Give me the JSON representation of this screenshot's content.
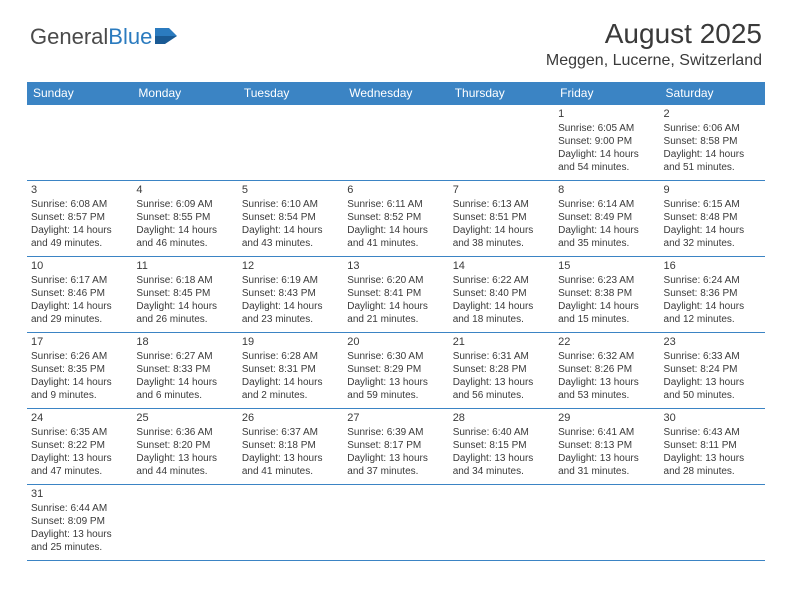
{
  "logo": {
    "part1": "General",
    "part2": "Blue"
  },
  "title": "August 2025",
  "location": "Meggen, Lucerne, Switzerland",
  "colors": {
    "header_bg": "#3b84c4",
    "header_text": "#ffffff",
    "body_text": "#3a3a3a",
    "border": "#3b84c4",
    "background": "#ffffff",
    "logo_blue": "#2b7bbf"
  },
  "weekdays": [
    "Sunday",
    "Monday",
    "Tuesday",
    "Wednesday",
    "Thursday",
    "Friday",
    "Saturday"
  ],
  "cells": [
    [
      {
        "day": "",
        "lines": []
      },
      {
        "day": "",
        "lines": []
      },
      {
        "day": "",
        "lines": []
      },
      {
        "day": "",
        "lines": []
      },
      {
        "day": "",
        "lines": []
      },
      {
        "day": "1",
        "lines": [
          "Sunrise: 6:05 AM",
          "Sunset: 9:00 PM",
          "Daylight: 14 hours",
          "and 54 minutes."
        ]
      },
      {
        "day": "2",
        "lines": [
          "Sunrise: 6:06 AM",
          "Sunset: 8:58 PM",
          "Daylight: 14 hours",
          "and 51 minutes."
        ]
      }
    ],
    [
      {
        "day": "3",
        "lines": [
          "Sunrise: 6:08 AM",
          "Sunset: 8:57 PM",
          "Daylight: 14 hours",
          "and 49 minutes."
        ]
      },
      {
        "day": "4",
        "lines": [
          "Sunrise: 6:09 AM",
          "Sunset: 8:55 PM",
          "Daylight: 14 hours",
          "and 46 minutes."
        ]
      },
      {
        "day": "5",
        "lines": [
          "Sunrise: 6:10 AM",
          "Sunset: 8:54 PM",
          "Daylight: 14 hours",
          "and 43 minutes."
        ]
      },
      {
        "day": "6",
        "lines": [
          "Sunrise: 6:11 AM",
          "Sunset: 8:52 PM",
          "Daylight: 14 hours",
          "and 41 minutes."
        ]
      },
      {
        "day": "7",
        "lines": [
          "Sunrise: 6:13 AM",
          "Sunset: 8:51 PM",
          "Daylight: 14 hours",
          "and 38 minutes."
        ]
      },
      {
        "day": "8",
        "lines": [
          "Sunrise: 6:14 AM",
          "Sunset: 8:49 PM",
          "Daylight: 14 hours",
          "and 35 minutes."
        ]
      },
      {
        "day": "9",
        "lines": [
          "Sunrise: 6:15 AM",
          "Sunset: 8:48 PM",
          "Daylight: 14 hours",
          "and 32 minutes."
        ]
      }
    ],
    [
      {
        "day": "10",
        "lines": [
          "Sunrise: 6:17 AM",
          "Sunset: 8:46 PM",
          "Daylight: 14 hours",
          "and 29 minutes."
        ]
      },
      {
        "day": "11",
        "lines": [
          "Sunrise: 6:18 AM",
          "Sunset: 8:45 PM",
          "Daylight: 14 hours",
          "and 26 minutes."
        ]
      },
      {
        "day": "12",
        "lines": [
          "Sunrise: 6:19 AM",
          "Sunset: 8:43 PM",
          "Daylight: 14 hours",
          "and 23 minutes."
        ]
      },
      {
        "day": "13",
        "lines": [
          "Sunrise: 6:20 AM",
          "Sunset: 8:41 PM",
          "Daylight: 14 hours",
          "and 21 minutes."
        ]
      },
      {
        "day": "14",
        "lines": [
          "Sunrise: 6:22 AM",
          "Sunset: 8:40 PM",
          "Daylight: 14 hours",
          "and 18 minutes."
        ]
      },
      {
        "day": "15",
        "lines": [
          "Sunrise: 6:23 AM",
          "Sunset: 8:38 PM",
          "Daylight: 14 hours",
          "and 15 minutes."
        ]
      },
      {
        "day": "16",
        "lines": [
          "Sunrise: 6:24 AM",
          "Sunset: 8:36 PM",
          "Daylight: 14 hours",
          "and 12 minutes."
        ]
      }
    ],
    [
      {
        "day": "17",
        "lines": [
          "Sunrise: 6:26 AM",
          "Sunset: 8:35 PM",
          "Daylight: 14 hours",
          "and 9 minutes."
        ]
      },
      {
        "day": "18",
        "lines": [
          "Sunrise: 6:27 AM",
          "Sunset: 8:33 PM",
          "Daylight: 14 hours",
          "and 6 minutes."
        ]
      },
      {
        "day": "19",
        "lines": [
          "Sunrise: 6:28 AM",
          "Sunset: 8:31 PM",
          "Daylight: 14 hours",
          "and 2 minutes."
        ]
      },
      {
        "day": "20",
        "lines": [
          "Sunrise: 6:30 AM",
          "Sunset: 8:29 PM",
          "Daylight: 13 hours",
          "and 59 minutes."
        ]
      },
      {
        "day": "21",
        "lines": [
          "Sunrise: 6:31 AM",
          "Sunset: 8:28 PM",
          "Daylight: 13 hours",
          "and 56 minutes."
        ]
      },
      {
        "day": "22",
        "lines": [
          "Sunrise: 6:32 AM",
          "Sunset: 8:26 PM",
          "Daylight: 13 hours",
          "and 53 minutes."
        ]
      },
      {
        "day": "23",
        "lines": [
          "Sunrise: 6:33 AM",
          "Sunset: 8:24 PM",
          "Daylight: 13 hours",
          "and 50 minutes."
        ]
      }
    ],
    [
      {
        "day": "24",
        "lines": [
          "Sunrise: 6:35 AM",
          "Sunset: 8:22 PM",
          "Daylight: 13 hours",
          "and 47 minutes."
        ]
      },
      {
        "day": "25",
        "lines": [
          "Sunrise: 6:36 AM",
          "Sunset: 8:20 PM",
          "Daylight: 13 hours",
          "and 44 minutes."
        ]
      },
      {
        "day": "26",
        "lines": [
          "Sunrise: 6:37 AM",
          "Sunset: 8:18 PM",
          "Daylight: 13 hours",
          "and 41 minutes."
        ]
      },
      {
        "day": "27",
        "lines": [
          "Sunrise: 6:39 AM",
          "Sunset: 8:17 PM",
          "Daylight: 13 hours",
          "and 37 minutes."
        ]
      },
      {
        "day": "28",
        "lines": [
          "Sunrise: 6:40 AM",
          "Sunset: 8:15 PM",
          "Daylight: 13 hours",
          "and 34 minutes."
        ]
      },
      {
        "day": "29",
        "lines": [
          "Sunrise: 6:41 AM",
          "Sunset: 8:13 PM",
          "Daylight: 13 hours",
          "and 31 minutes."
        ]
      },
      {
        "day": "30",
        "lines": [
          "Sunrise: 6:43 AM",
          "Sunset: 8:11 PM",
          "Daylight: 13 hours",
          "and 28 minutes."
        ]
      }
    ],
    [
      {
        "day": "31",
        "lines": [
          "Sunrise: 6:44 AM",
          "Sunset: 8:09 PM",
          "Daylight: 13 hours",
          "and 25 minutes."
        ]
      },
      {
        "day": "",
        "lines": []
      },
      {
        "day": "",
        "lines": []
      },
      {
        "day": "",
        "lines": []
      },
      {
        "day": "",
        "lines": []
      },
      {
        "day": "",
        "lines": []
      },
      {
        "day": "",
        "lines": []
      }
    ]
  ]
}
